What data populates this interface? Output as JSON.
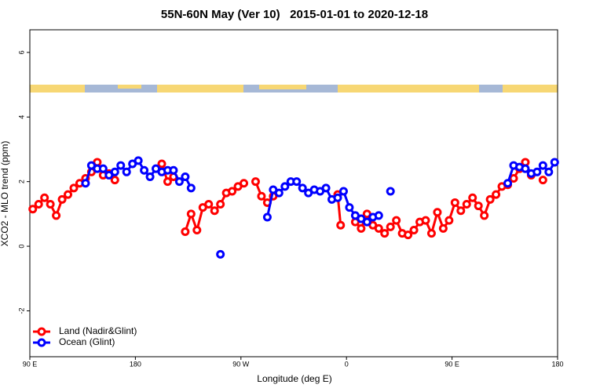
{
  "chart_data": {
    "type": "line",
    "title": "55N-60N May (Ver 10)   2015-01-01 to 2020-12-18",
    "x_label": "Longitude (deg E)",
    "y_label": "XCO2 - MLO trend (ppm)",
    "xlim": [
      90,
      540
    ],
    "xticks": [
      {
        "value": 90,
        "label": "90 E"
      },
      {
        "value": 180,
        "label": "180"
      },
      {
        "value": 270,
        "label": "90 W"
      },
      {
        "value": 360,
        "label": "0"
      },
      {
        "value": 450,
        "label": "90 E"
      },
      {
        "value": 540,
        "label": "180"
      }
    ],
    "ylim": [
      -3.42,
      6.7
    ],
    "yticks": [
      -2,
      0,
      2,
      4,
      6
    ],
    "legend": "bottom-left",
    "series": [
      {
        "name": "Land (Nadir&Glint)",
        "color": "#ff0000",
        "x": [
          92.5,
          97.5,
          102.5,
          107.5,
          112.5,
          117.5,
          122.5,
          127.5,
          132.5,
          137.5,
          142.5,
          147.5,
          152.5,
          157.5,
          162.5,
          null,
          202.5,
          207.5,
          212.5,
          null,
          222.5,
          227.5,
          232.5,
          237.5,
          242.5,
          247.5,
          252.5,
          257.5,
          262.5,
          267.5,
          272.5,
          null,
          282.5,
          287.5,
          292.5,
          297.5,
          null,
          352.5,
          355,
          null,
          367.5,
          372.5,
          377.5,
          382.5,
          387.5,
          392.5,
          397.5,
          402.5,
          407.5,
          412.5,
          417.5,
          422.5,
          427.5,
          432.5,
          437.5,
          442.5,
          447.5,
          452.5,
          457.5,
          462.5,
          467.5,
          472.5,
          477.5,
          482.5,
          487.5,
          492.5,
          497.5,
          502.5,
          507.5,
          512.5,
          517.5,
          null,
          527.5
        ],
        "values": [
          1.15,
          1.3,
          1.5,
          1.3,
          0.95,
          1.45,
          1.6,
          1.8,
          1.95,
          2.1,
          2.3,
          2.6,
          2.2,
          2.25,
          2.05,
          null,
          2.55,
          2.0,
          2.15,
          null,
          0.45,
          1.0,
          0.5,
          1.2,
          1.3,
          1.1,
          1.3,
          1.65,
          1.7,
          1.85,
          1.95,
          null,
          2.0,
          1.55,
          1.35,
          1.55,
          null,
          1.6,
          0.65,
          null,
          0.75,
          0.55,
          1.0,
          0.65,
          0.55,
          0.4,
          0.6,
          0.8,
          0.4,
          0.35,
          0.5,
          0.75,
          0.8,
          0.4,
          1.05,
          0.55,
          0.8,
          1.35,
          1.1,
          1.3,
          1.5,
          1.25,
          0.95,
          1.45,
          1.6,
          1.85,
          1.9,
          2.1,
          2.4,
          2.6,
          2.2,
          null,
          2.05
        ]
      },
      {
        "name": "Ocean (Glint)",
        "color": "#0000ff",
        "x": [
          137.5,
          142.5,
          147.5,
          152.5,
          157.5,
          162.5,
          167.5,
          172.5,
          177.5,
          182.5,
          187.5,
          192.5,
          197.5,
          202.5,
          207.5,
          212.5,
          217.5,
          222.5,
          227.5,
          null,
          252.5,
          null,
          292.5,
          297.5,
          302.5,
          307.5,
          312.5,
          317.5,
          322.5,
          327.5,
          332.5,
          337.5,
          342.5,
          347.5,
          352.5,
          357.5,
          362.5,
          367.5,
          372.5,
          377.5,
          382.5,
          387.5,
          null,
          397.5,
          null,
          497.5,
          502.5,
          507.5,
          512.5,
          517.5,
          522.5,
          527.5,
          532.5,
          537.5
        ],
        "values": [
          1.95,
          2.5,
          2.4,
          2.4,
          2.2,
          2.3,
          2.5,
          2.3,
          2.55,
          2.65,
          2.35,
          2.15,
          2.4,
          2.3,
          2.35,
          2.35,
          2.0,
          2.15,
          1.8,
          null,
          -0.25,
          null,
          0.9,
          1.75,
          1.65,
          1.85,
          2.0,
          2.0,
          1.8,
          1.65,
          1.75,
          1.7,
          1.8,
          1.45,
          1.5,
          1.7,
          1.2,
          0.95,
          0.85,
          0.75,
          0.9,
          0.95,
          null,
          1.7,
          null,
          1.95,
          2.5,
          2.45,
          2.4,
          2.25,
          2.3,
          2.5,
          2.3,
          2.6
        ]
      }
    ]
  }
}
